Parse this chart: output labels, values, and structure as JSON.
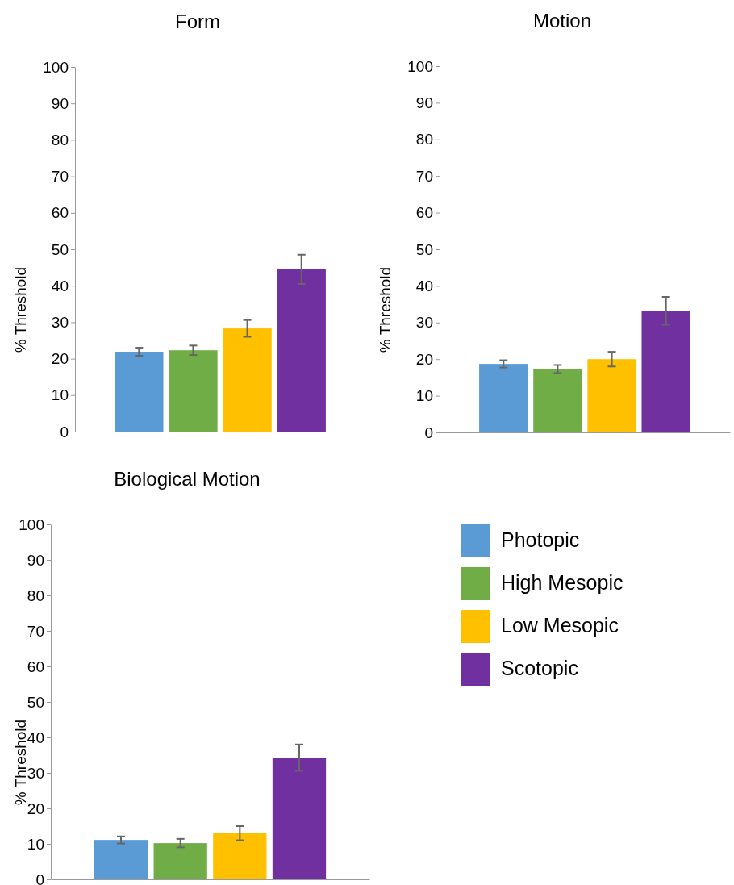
{
  "chart_data": [
    {
      "type": "bar",
      "title": "Form",
      "ylabel": "% Threshold",
      "categories": [
        null
      ],
      "ylim": [
        0,
        100
      ],
      "yticks": [
        0,
        10,
        20,
        30,
        40,
        50,
        60,
        70,
        80,
        90,
        100
      ],
      "legend": false,
      "series": [
        {
          "color": "#5b9bd5",
          "values": [
            21.9
          ],
          "errors": [
            1.1
          ]
        },
        {
          "color": "#70ad47",
          "values": [
            22.3
          ],
          "errors": [
            1.3
          ]
        },
        {
          "color": "#ffc000",
          "values": [
            28.3
          ],
          "errors": [
            2.3
          ]
        },
        {
          "color": "#7030a0",
          "values": [
            44.5
          ],
          "errors": [
            4
          ]
        }
      ]
    },
    {
      "type": "bar",
      "title": "Motion",
      "ylabel": "% Threshold",
      "categories": [
        null
      ],
      "ylim": [
        0,
        100
      ],
      "yticks": [
        0,
        10,
        20,
        30,
        40,
        50,
        60,
        70,
        80,
        90,
        100
      ],
      "legend": false,
      "series": [
        {
          "color": "#5b9bd5",
          "values": [
            18.7
          ],
          "errors": [
            1
          ]
        },
        {
          "color": "#70ad47",
          "values": [
            17.3
          ],
          "errors": [
            1.1
          ]
        },
        {
          "color": "#ffc000",
          "values": [
            20
          ],
          "errors": [
            2
          ]
        },
        {
          "color": "#7030a0",
          "values": [
            33.2
          ],
          "errors": [
            3.8
          ]
        }
      ]
    },
    {
      "type": "bar",
      "title": "Biological Motion",
      "ylabel": "% Threshold",
      "categories": [
        null
      ],
      "ylim": [
        0,
        100
      ],
      "yticks": [
        0,
        10,
        20,
        30,
        40,
        50,
        60,
        70,
        80,
        90,
        100
      ],
      "legend": "right",
      "series": [
        {
          "name": "Photopic",
          "color": "#5b9bd5",
          "values": [
            11.1
          ],
          "errors": [
            1
          ]
        },
        {
          "name": "High Mesopic",
          "color": "#70ad47",
          "values": [
            10.2
          ],
          "errors": [
            1.2
          ]
        },
        {
          "name": "Low Mesopic",
          "color": "#ffc000",
          "values": [
            13
          ],
          "errors": [
            2
          ]
        },
        {
          "name": "Scotopic",
          "color": "#7030a0",
          "values": [
            34.3
          ],
          "errors": [
            3.7
          ]
        }
      ]
    }
  ]
}
